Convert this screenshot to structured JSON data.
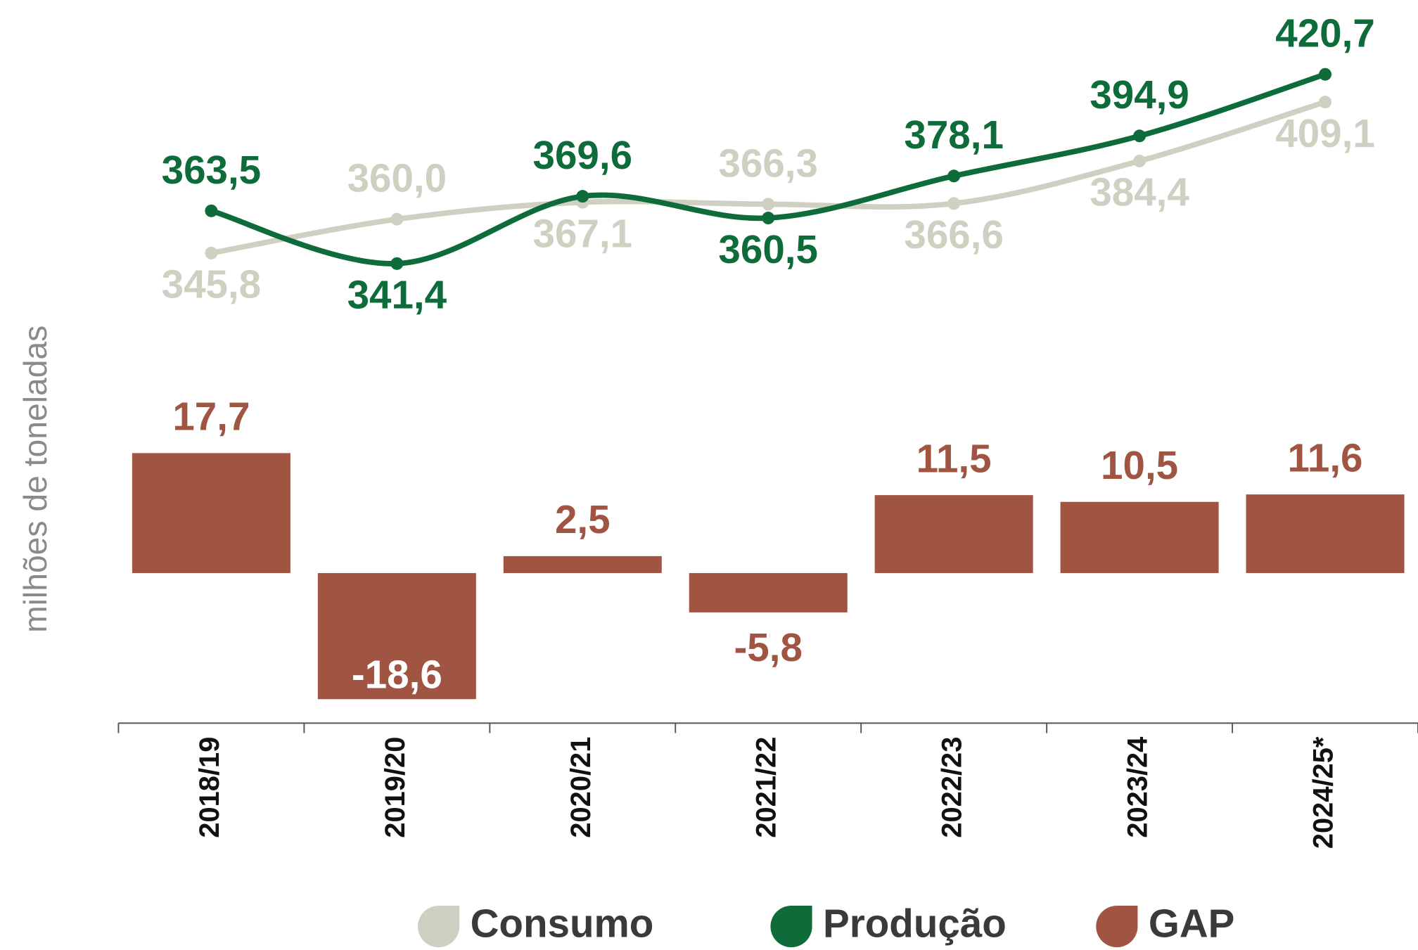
{
  "chart_data": {
    "type": "line_bar",
    "y_label": "milhões de toneladas",
    "categories": [
      "2018/19",
      "2019/20",
      "2020/21",
      "2021/22",
      "2022/23",
      "2023/24",
      "2024/25*"
    ],
    "ylim": [
      330,
      430
    ],
    "y2lim": [
      -20,
      20
    ],
    "series": [
      {
        "name": "Consumo",
        "type": "line",
        "color": "#cfd0c2",
        "values": [
          345.8,
          360.0,
          367.1,
          366.3,
          366.6,
          384.4,
          409.1
        ],
        "value_labels": [
          "345,8",
          "360,0",
          "367,1",
          "366,3",
          "366,6",
          "384,4",
          "409,1"
        ]
      },
      {
        "name": "Produção",
        "type": "line",
        "color": "#0e6b3a",
        "values": [
          363.5,
          341.4,
          369.6,
          360.5,
          378.1,
          394.9,
          420.7
        ],
        "value_labels": [
          "363,5",
          "341,4",
          "369,6",
          "360,5",
          "378,1",
          "394,9",
          "420,7"
        ]
      },
      {
        "name": "GAP",
        "type": "bar",
        "axis": "y2",
        "color": "#a05543",
        "values": [
          17.7,
          -18.6,
          2.5,
          -5.8,
          11.5,
          10.5,
          11.6
        ],
        "value_labels": [
          "17,7",
          "-18,6",
          "2,5",
          "-5,8",
          "11,5",
          "10,5",
          "11,6"
        ]
      }
    ]
  }
}
